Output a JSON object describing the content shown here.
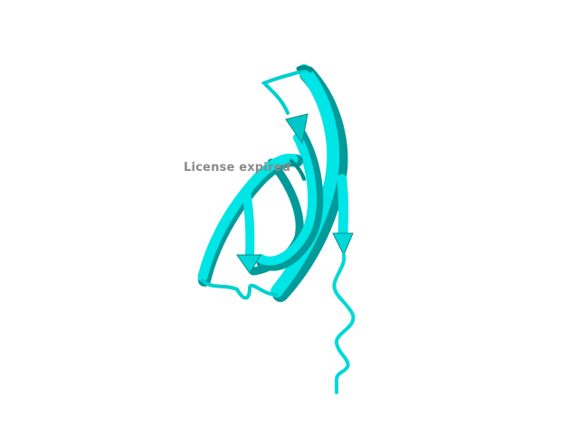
{
  "overlay": {
    "watermark_text": "License expired"
  },
  "structure": {
    "representation": "cartoon",
    "color": "#00e5e5",
    "shade_color": "#009a9a",
    "background": "#ffffff"
  }
}
